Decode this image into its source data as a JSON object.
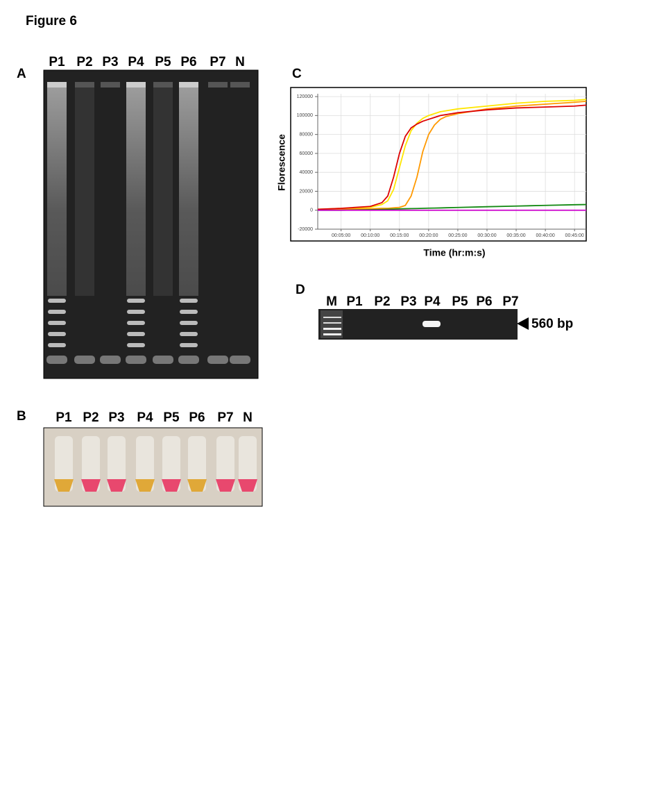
{
  "title": "Figure 6",
  "panel_a": {
    "label": "A",
    "lanes": [
      "P1",
      "P2",
      "P3",
      "P4",
      "P5",
      "P6",
      "P7",
      "N"
    ]
  },
  "panel_b": {
    "label": "B",
    "lanes": [
      "P1",
      "P2",
      "P3",
      "P4",
      "P5",
      "P6",
      "P7",
      "N"
    ]
  },
  "chart_data": {
    "type": "line",
    "panel_label": "C",
    "y_label": "Florescence",
    "x_label": "Time (hr:m:s)",
    "x": [
      1,
      5,
      10,
      12,
      13,
      14,
      15,
      16,
      17,
      18,
      19,
      20,
      21,
      22,
      23,
      25,
      30,
      35,
      40,
      45,
      47
    ],
    "series": [
      {
        "color": "#ffe600",
        "values": [
          1000,
          2000,
          3000,
          6000,
          10000,
          22000,
          45000,
          68000,
          84000,
          92000,
          97000,
          100000,
          102000,
          104000,
          105000,
          107000,
          110000,
          113000,
          115000,
          116000,
          117000
        ]
      },
      {
        "color": "#ff9900",
        "values": [
          500,
          1000,
          1500,
          2000,
          2000,
          2500,
          3000,
          5000,
          15000,
          35000,
          62000,
          80000,
          90000,
          96000,
          99000,
          102000,
          107000,
          110000,
          112000,
          114000,
          115000
        ]
      },
      {
        "color": "#dd0000",
        "values": [
          1000,
          2000,
          4000,
          8000,
          15000,
          35000,
          60000,
          78000,
          87000,
          91000,
          94000,
          96000,
          98000,
          100000,
          101000,
          103000,
          106000,
          108000,
          109000,
          110000,
          111000
        ]
      },
      {
        "color": "#118811",
        "values": [
          0,
          0,
          500,
          800,
          1000,
          1200,
          1400,
          1600,
          1700,
          1800,
          2000,
          2200,
          2300,
          2400,
          2600,
          2900,
          3700,
          4400,
          5100,
          5800,
          6000
        ]
      },
      {
        "color": "#cc00cc",
        "values": [
          0,
          0,
          0,
          0,
          0,
          0,
          0,
          0,
          0,
          0,
          0,
          0,
          0,
          0,
          0,
          0,
          0,
          0,
          0,
          0,
          0
        ]
      }
    ],
    "xlim": [
      1,
      47
    ],
    "xticks": [
      {
        "value": 5,
        "label": "00:05:00"
      },
      {
        "value": 10,
        "label": "00:10:00"
      },
      {
        "value": 15,
        "label": "00:15:00"
      },
      {
        "value": 20,
        "label": "00:20:00"
      },
      {
        "value": 25,
        "label": "00:25:00"
      },
      {
        "value": 30,
        "label": "00:30:00"
      },
      {
        "value": 35,
        "label": "00:35:00"
      },
      {
        "value": 40,
        "label": "00:40:00"
      },
      {
        "value": 45,
        "label": "00:45:00"
      }
    ],
    "ylim": [
      -20000,
      123000
    ],
    "yticks": [
      -20000,
      0,
      20000,
      40000,
      60000,
      80000,
      100000,
      120000
    ],
    "grid": true
  },
  "panel_d": {
    "label": "D",
    "lanes": [
      "M",
      "P1",
      "P2",
      "P3",
      "P4",
      "P5",
      "P6",
      "P7"
    ],
    "band_label": "560 bp"
  }
}
